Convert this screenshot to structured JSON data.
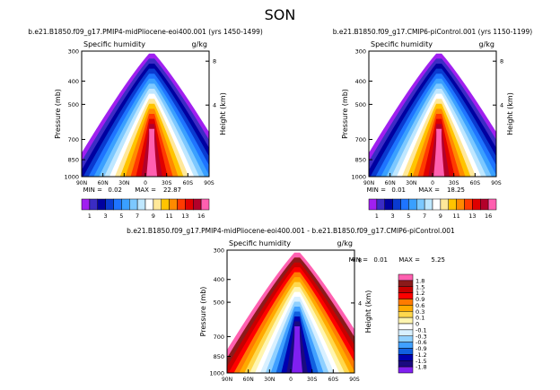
{
  "figure": {
    "title": "SON"
  },
  "chart_data": [
    {
      "type": "heatmap",
      "title": "b.e21.B1850.f09_g17.PMIP4-midPliocene-eoi400.001 (yrs 1450-1499)",
      "variable": "Specific humidity",
      "units": "g/kg",
      "xlabel": "",
      "ylabel": "Pressure (mb)",
      "ylabel_right": "Height (km)",
      "x_ticks": [
        "90N",
        "60N",
        "30N",
        "0",
        "30S",
        "60S",
        "90S"
      ],
      "y_ticks": [
        "300",
        "400",
        "500",
        "700",
        "850",
        "1000"
      ],
      "right_ticks": [
        "8",
        "4"
      ],
      "min_label": "MIN =",
      "min": "0.02",
      "max_label": "MAX =",
      "max": "22.87",
      "levels": [
        "1",
        "3",
        "5",
        "7",
        "9",
        "11",
        "13",
        "16"
      ],
      "colors": [
        "#a020f0",
        "#3b2cc4",
        "#0000a0",
        "#0a3ad0",
        "#1e74ff",
        "#3aa0ff",
        "#7cc8ff",
        "#bfe7ff",
        "#ffffff",
        "#ffe89a",
        "#ffc400",
        "#ff8a00",
        "#ff3a00",
        "#e00000",
        "#b3002a",
        "#ff60b0"
      ]
    },
    {
      "type": "heatmap",
      "title": "b.e21.B1850.f09_g17.CMIP6-piControl.001 (yrs 1150-1199)",
      "variable": "Specific humidity",
      "units": "g/kg",
      "xlabel": "",
      "ylabel": "Pressure (mb)",
      "ylabel_right": "Height (km)",
      "x_ticks": [
        "90N",
        "60N",
        "30N",
        "0",
        "30S",
        "60S",
        "90S"
      ],
      "y_ticks": [
        "300",
        "400",
        "500",
        "700",
        "850",
        "1000"
      ],
      "right_ticks": [
        "8",
        "4"
      ],
      "min_label": "MIN =",
      "min": "0.01",
      "max_label": "MAX =",
      "max": "18.25",
      "levels": [
        "1",
        "3",
        "5",
        "7",
        "9",
        "11",
        "13",
        "16"
      ],
      "colors": [
        "#a020f0",
        "#3b2cc4",
        "#0000a0",
        "#0a3ad0",
        "#1e74ff",
        "#3aa0ff",
        "#7cc8ff",
        "#bfe7ff",
        "#ffffff",
        "#ffe89a",
        "#ffc400",
        "#ff8a00",
        "#ff3a00",
        "#e00000",
        "#b3002a",
        "#ff60b0"
      ]
    },
    {
      "type": "heatmap",
      "title": "b.e21.B1850.f09_g17.PMIP4-midPliocene-eoi400.001 - b.e21.B1850.f09_g17.CMIP6-piControl.001",
      "variable": "Specific humidity",
      "units": "g/kg",
      "xlabel": "",
      "ylabel": "Pressure (mb)",
      "ylabel_right": "Height (km)",
      "x_ticks": [
        "90N",
        "60N",
        "30N",
        "0",
        "30S",
        "60S",
        "90S"
      ],
      "y_ticks": [
        "300",
        "400",
        "500",
        "700",
        "850",
        "1000"
      ],
      "right_ticks": [
        "8",
        "4"
      ],
      "min_label": "MIN =",
      "min": "0.01",
      "max_label": "MAX =",
      "max": "5.25",
      "levels": [
        "1.8",
        "1.5",
        "1.2",
        "0.9",
        "0.6",
        "0.3",
        "0.1",
        "0",
        "-0.1",
        "-0.3",
        "-0.6",
        "-0.9",
        "-1.2",
        "-1.5",
        "-1.8"
      ],
      "colors": [
        "#ff60b0",
        "#8b1a1a",
        "#c80000",
        "#ff0000",
        "#ff7a00",
        "#ffaa00",
        "#ffd84d",
        "#fff5b0",
        "#ffffff",
        "#d8f0ff",
        "#8fd0ff",
        "#40a0ff",
        "#1060e0",
        "#0000b0",
        "#1a0a80",
        "#8020f0"
      ]
    }
  ]
}
